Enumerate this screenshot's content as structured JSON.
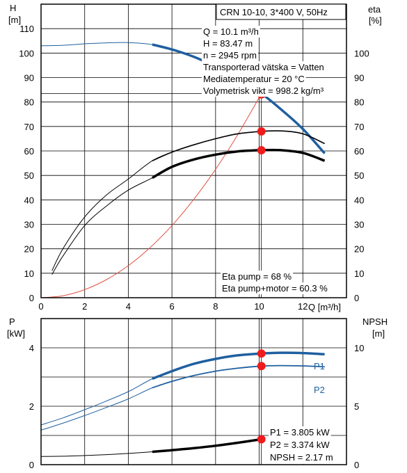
{
  "chart_data": [
    {
      "type": "line",
      "title": "CRN 10-10, 3*400 V, 50Hz",
      "xlabel": "Q [m³/h]",
      "y_left_label": [
        "H",
        "[m]"
      ],
      "y_right_label": [
        "eta",
        "[%]"
      ],
      "xlim": [
        0,
        14
      ],
      "ylim_left": [
        0,
        120
      ],
      "ylim_right": [
        0,
        120
      ],
      "x_ticks": [
        0,
        2,
        4,
        6,
        8,
        10,
        12
      ],
      "y_left_ticks": [
        0,
        10,
        20,
        30,
        40,
        50,
        60,
        70,
        80,
        90,
        100,
        110
      ],
      "y_right_ticks": [
        0,
        10,
        20,
        30,
        40,
        50,
        60,
        70,
        80,
        90,
        100
      ],
      "grid": true,
      "series": [
        {
          "axis": "left",
          "color": "#1f5fa0",
          "style": "head",
          "x": [
            0,
            1,
            2,
            3,
            4,
            5.1,
            6,
            7,
            8,
            9,
            10.1,
            11,
            12,
            13
          ],
          "y": [
            103,
            103.2,
            103.8,
            104.2,
            104.3,
            103.5,
            101.5,
            98.5,
            94.5,
            89.8,
            83.47,
            77,
            69,
            59
          ]
        },
        {
          "axis": "right",
          "color": "#000000",
          "style": "eta-pump",
          "x": [
            0.5,
            1,
            2,
            3,
            4,
            5.1,
            6,
            7,
            8,
            9,
            10.1,
            11,
            12,
            13
          ],
          "y": [
            11,
            20,
            33,
            42,
            48.5,
            56,
            59.5,
            62.5,
            65,
            67,
            68,
            68.2,
            67,
            63
          ]
        },
        {
          "axis": "right",
          "color": "#000000",
          "style": "eta-total",
          "x": [
            0.5,
            1,
            2,
            3,
            4,
            5.1,
            6,
            7,
            8,
            9,
            10.1,
            11,
            12,
            13
          ],
          "y": [
            9.5,
            17,
            29.5,
            37.5,
            44,
            49,
            53.5,
            56.5,
            58.5,
            59.8,
            60.3,
            60.3,
            59.2,
            56
          ]
        },
        {
          "axis": "left",
          "color": "#e05040",
          "style": "system",
          "x": [
            0,
            1,
            2,
            3,
            4,
            5,
            6,
            7,
            8,
            9,
            10.1
          ],
          "y": [
            0,
            0.8,
            3.3,
            7.4,
            13.1,
            20.5,
            29.5,
            40.2,
            52.5,
            66.4,
            83.47
          ]
        }
      ],
      "annotations": {
        "info_lines": [
          "Q = 10.1 m³/h",
          "H = 83.47 m",
          "n = 2945 rpm",
          "Transporterad vätska = Vatten",
          "Mediatemperatur = 20 °C",
          "Volymetrisk vikt = 998.2 kg/m³"
        ],
        "eta_lines": [
          "Eta pump = 68 %",
          "Eta pump+motor = 60.3 %"
        ]
      },
      "duty_point": {
        "x": 10.1,
        "y_head": 83.47,
        "eta_pump": 68,
        "eta_total": 60.3
      }
    },
    {
      "type": "line",
      "xlabel": "",
      "y_left_label": [
        "P",
        "[kW]"
      ],
      "y_right_label": [
        "NPSH",
        "[m]"
      ],
      "xlim": [
        0,
        14
      ],
      "ylim_left": [
        0,
        5
      ],
      "ylim_right": [
        0,
        12.5
      ],
      "y_left_ticks": [
        0,
        2,
        4
      ],
      "y_right_ticks": [
        0,
        5,
        10
      ],
      "grid": true,
      "series": [
        {
          "name": "P1",
          "axis": "left",
          "color": "#1f5fa0",
          "x": [
            0,
            1,
            2,
            3,
            4,
            5.1,
            6,
            7,
            8,
            9,
            10.1,
            11,
            12,
            13
          ],
          "y": [
            1.36,
            1.6,
            1.88,
            2.18,
            2.5,
            2.94,
            3.2,
            3.45,
            3.62,
            3.74,
            3.805,
            3.83,
            3.82,
            3.78
          ]
        },
        {
          "name": "P2",
          "axis": "left",
          "color": "#1f5fa0",
          "x": [
            0,
            1,
            2,
            3,
            4,
            5.1,
            6,
            7,
            8,
            9,
            10.1,
            11,
            12,
            13
          ],
          "y": [
            1.18,
            1.42,
            1.68,
            1.96,
            2.25,
            2.63,
            2.85,
            3.05,
            3.2,
            3.3,
            3.374,
            3.39,
            3.38,
            3.35
          ]
        },
        {
          "name": "NPSH",
          "axis": "right",
          "color": "#000000",
          "x": [
            0,
            1,
            2,
            3,
            4,
            5.1,
            6,
            7,
            8,
            9,
            10.1
          ],
          "y": [
            0.7,
            0.72,
            0.78,
            0.86,
            0.96,
            1.1,
            1.24,
            1.41,
            1.62,
            1.87,
            2.17
          ]
        }
      ],
      "annotations": {
        "info_lines": [
          "P1 = 3.805 kW",
          "P2 = 3.374 kW",
          "NPSH = 2.17 m"
        ]
      },
      "duty_point": {
        "x": 10.1,
        "P1": 3.805,
        "P2": 3.374,
        "NPSH": 2.17
      }
    }
  ]
}
